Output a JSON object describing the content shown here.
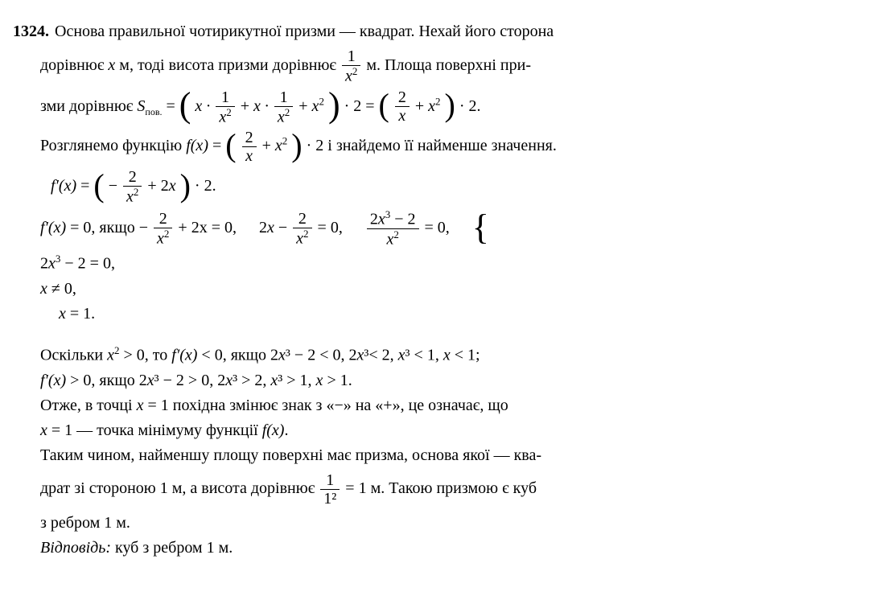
{
  "problem_number": "1324.",
  "p1_a": "Основа правильної чотирикутної призми — квадрат. Нехай його сторона",
  "p1_b_1": "дорівнює ",
  "p1_b_var": "x",
  "p1_b_2": " м, тоді висота призми дорівнює ",
  "frac1_num": "1",
  "frac1_den_var": "x",
  "frac1_den_exp": "2",
  "p1_b_3": " м. Площа поверхні при-",
  "p2_1": "зми дорівнює ",
  "S_label": "S",
  "S_sub": "пов.",
  "eq": " = ",
  "x_dot": "x · ",
  "plus": " + ",
  "x2_var": "x",
  "x2_exp": "2",
  "times2": " · 2",
  "eq2": " = ",
  "two": "2",
  "x_only": "x",
  "p2_end": " · 2.",
  "p3_a": "Розглянемо функцію ",
  "fx": "f(x)",
  "p3_b": " і знайдемо її найменше значення.",
  "fpx": "f′(x)",
  "neg": "− ",
  "twox": "2x",
  "p4_end": " · 2.",
  "p5_eq0": " = 0,  якщо ",
  "neg2": "− ",
  "plus2x0": " + 2x = 0,",
  "eq_2x_minus": "2x − ",
  "eq_frac_eq0": " = 0,",
  "frac3_num": "2x³ − 2",
  "frac3_eq0": " = 0,",
  "case1": "2x³ − 2 = 0,",
  "case2_var": "x",
  "case2_rest": " ≠ 0,",
  "p5_end_var": "x",
  "p5_end": " = 1.",
  "p6_a": "Оскільки ",
  "p6_x2_gt0": " > 0, то ",
  "p6_fpx_lt0": " < 0, якщо 2",
  "p6_x3": "x",
  "p6_cube": "³",
  "p6_seq1": " − 2 < 0, 2",
  "p6_seq2": "< 2, ",
  "p6_seq3": " < 1, ",
  "p6_seq4": " < 1;",
  "p7": " > 0, якщо 2",
  "p7_seq1": " − 2 > 0, 2",
  "p7_seq2": " > 2, ",
  "p7_seq3": " > 1, ",
  "p7_seq4": " > 1.",
  "p8": "Отже, в точці ",
  "p8_var": "x",
  "p8_b": " = 1 похідна змінює знак з «−» на «+», це означає, що",
  "p9_var": "x",
  "p9": " = 1 — точка мінімуму функції ",
  "p9_fx": "f(x)",
  "p9_dot": ".",
  "p10": "Таким чином, найменшу площу поверхні має призма, основа якої — ква-",
  "p11_a": "драт зі стороною 1 м, а висота дорівнює ",
  "frac4_num": "1",
  "frac4_den": "1²",
  "p11_b": " = 1 м. Такою призмою є куб",
  "p12": "з ребром 1 м.",
  "answer_label": "Відповідь:",
  "answer_text": " куб з ребром 1 м."
}
